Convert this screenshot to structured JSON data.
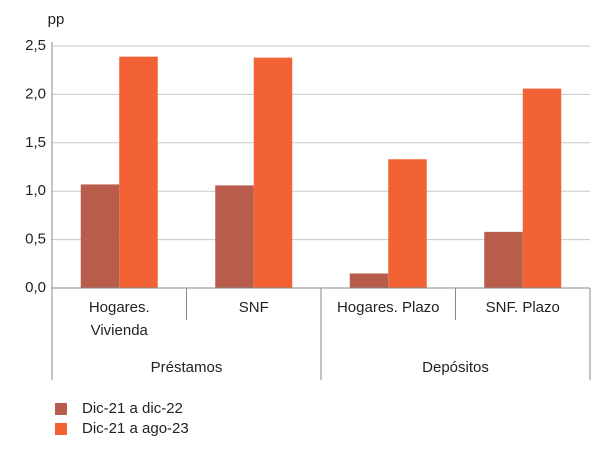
{
  "chart_data": {
    "type": "bar",
    "y_label": "pp",
    "categories": [
      [
        "Hogares.",
        "Vivienda"
      ],
      [
        "SNF"
      ],
      [
        "Hogares. Plazo"
      ],
      [
        "SNF. Plazo"
      ]
    ],
    "groups": [
      {
        "name": "Préstamos",
        "span": [
          0,
          1
        ]
      },
      {
        "name": "Depósitos",
        "span": [
          2,
          3
        ]
      }
    ],
    "series": [
      {
        "name": "Dic-21 a dic-22",
        "color": "#b85c4b",
        "values": [
          1.07,
          1.06,
          0.15,
          0.58
        ]
      },
      {
        "name": "Dic-21 a ago-23",
        "color": "#f26235",
        "values": [
          2.39,
          2.38,
          1.33,
          2.06
        ]
      }
    ],
    "ylim": [
      0,
      2.5
    ],
    "yticks": [
      {
        "value": 0,
        "label": "0,0"
      },
      {
        "value": 0.5,
        "label": "0,5"
      },
      {
        "value": 1,
        "label": "1,0"
      },
      {
        "value": 1.5,
        "label": "1,5"
      },
      {
        "value": 2,
        "label": "2,0"
      },
      {
        "value": 2.5,
        "label": "2,5"
      }
    ],
    "grid": true
  }
}
